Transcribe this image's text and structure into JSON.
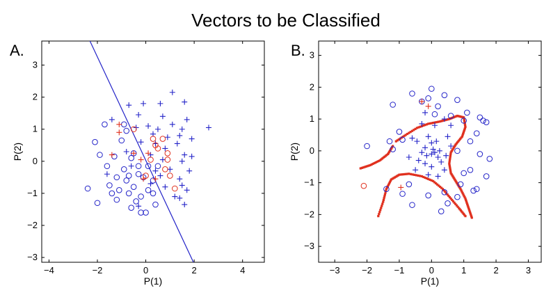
{
  "figure_title": "Vectors to be Classified",
  "colors": {
    "blue": "#2323c8",
    "red": "#e0301e",
    "axis": "#000000"
  },
  "chart_data": [
    {
      "type": "scatter",
      "panel_label": "A.",
      "xlabel": "P(1)",
      "ylabel": "P(2)",
      "xlim": [
        -4.3,
        4.9
      ],
      "ylim": [
        -3.15,
        3.75
      ],
      "xticks": [
        -4,
        -2,
        0,
        2,
        4
      ],
      "yticks": [
        -3,
        -2,
        -1,
        0,
        1,
        2,
        3
      ],
      "grid": false,
      "series": [
        {
          "marker": "plus",
          "color": "#2323c8",
          "points": [
            [
              -0.7,
              1.75
            ],
            [
              -0.1,
              1.8
            ],
            [
              0.6,
              1.8
            ],
            [
              1.1,
              2.15
            ],
            [
              1.6,
              1.85
            ],
            [
              -1.4,
              1.3
            ],
            [
              -0.3,
              1.45
            ],
            [
              0.7,
              1.4
            ],
            [
              -0.4,
              1.05
            ],
            [
              0.1,
              1.1
            ],
            [
              0.5,
              1.0
            ],
            [
              1.1,
              1.15
            ],
            [
              1.5,
              1.0
            ],
            [
              1.7,
              1.3
            ],
            [
              2.6,
              1.05
            ],
            [
              0.3,
              0.85
            ],
            [
              0.9,
              0.75
            ],
            [
              1.4,
              0.8
            ],
            [
              1.9,
              0.7
            ],
            [
              -0.2,
              0.6
            ],
            [
              0.4,
              0.55
            ],
            [
              0.8,
              0.4
            ],
            [
              1.3,
              0.55
            ],
            [
              1.6,
              0.2
            ],
            [
              -0.8,
              0.3
            ],
            [
              0.2,
              0.2
            ],
            [
              0.7,
              0.05
            ],
            [
              1.5,
              0.0
            ],
            [
              1.9,
              0.15
            ],
            [
              -0.6,
              -0.15
            ],
            [
              0.4,
              -0.3
            ],
            [
              1.0,
              -0.25
            ],
            [
              -1.6,
              -0.4
            ],
            [
              0.6,
              -0.45
            ],
            [
              1.4,
              -0.55
            ],
            [
              1.8,
              -0.3
            ],
            [
              0.2,
              -0.7
            ],
            [
              0.8,
              -0.8
            ],
            [
              1.5,
              -0.75
            ],
            [
              1.7,
              -0.9
            ],
            [
              1.2,
              -1.1
            ],
            [
              1.6,
              -1.35
            ],
            [
              1.4,
              -1.15
            ],
            [
              -0.3,
              -1.4
            ]
          ]
        },
        {
          "marker": "circle",
          "color": "#2323c8",
          "points": [
            [
              -2.4,
              -0.85
            ],
            [
              -2.0,
              -1.3
            ],
            [
              -2.1,
              0.6
            ],
            [
              -1.9,
              0.2
            ],
            [
              -1.7,
              1.15
            ],
            [
              -1.6,
              -0.15
            ],
            [
              -1.3,
              0.15
            ],
            [
              -1.2,
              -0.5
            ],
            [
              -1.1,
              -0.9
            ],
            [
              -1.2,
              -1.2
            ],
            [
              -1.0,
              0.65
            ],
            [
              -0.8,
              0.95
            ],
            [
              -0.9,
              -0.25
            ],
            [
              -0.8,
              -0.6
            ],
            [
              -0.7,
              -1.0
            ],
            [
              -0.6,
              -1.45
            ],
            [
              -0.5,
              0.25
            ],
            [
              -0.5,
              -0.8
            ],
            [
              -0.4,
              -1.25
            ],
            [
              -0.3,
              -0.4
            ],
            [
              -0.2,
              -1.1
            ],
            [
              -0.2,
              -1.6
            ],
            [
              0.0,
              -1.6
            ],
            [
              0.1,
              -0.9
            ],
            [
              0.3,
              -1.0
            ],
            [
              0.3,
              -0.6
            ],
            [
              0.4,
              -1.35
            ],
            [
              -0.6,
              0.1
            ],
            [
              -0.9,
              1.15
            ],
            [
              -1.5,
              -0.75
            ],
            [
              -0.3,
              -0.15
            ],
            [
              -0.1,
              -0.5
            ],
            [
              0.1,
              -0.15
            ],
            [
              0.5,
              -0.15
            ],
            [
              -1.4,
              -1.0
            ],
            [
              -0.7,
              -0.45
            ]
          ]
        },
        {
          "marker": "plus",
          "color": "#e0301e",
          "points": [
            [
              -1.1,
              1.15
            ],
            [
              -1.1,
              0.9
            ],
            [
              -1.4,
              0.2
            ],
            [
              -0.5,
              0.25
            ],
            [
              -0.2,
              0.05
            ],
            [
              0.1,
              0.25
            ],
            [
              0.4,
              -0.55
            ],
            [
              -0.1,
              -0.55
            ]
          ]
        },
        {
          "marker": "circle",
          "color": "#e0301e",
          "points": [
            [
              -0.5,
              1.0
            ],
            [
              0.3,
              0.7
            ],
            [
              0.4,
              0.5
            ],
            [
              0.7,
              0.7
            ],
            [
              0.5,
              0.4
            ],
            [
              0.9,
              0.25
            ],
            [
              0.2,
              0.05
            ],
            [
              0.9,
              0.05
            ],
            [
              0.8,
              -0.25
            ],
            [
              1.2,
              -0.85
            ],
            [
              0.0,
              -0.45
            ],
            [
              1.0,
              -0.45
            ]
          ]
        }
      ],
      "decision_line": {
        "color": "#2323c8",
        "from": [
          -2.4,
          3.9
        ],
        "to": [
          2.0,
          -3.2
        ]
      }
    },
    {
      "type": "scatter",
      "panel_label": "B.",
      "xlabel": "P(1)",
      "ylabel": "P(2)",
      "xlim": [
        -3.5,
        3.4
      ],
      "ylim": [
        -3.5,
        3.45
      ],
      "xticks": [
        -3,
        -2,
        -1,
        0,
        1,
        2,
        3
      ],
      "yticks": [
        -3,
        -2,
        -1,
        0,
        1,
        2,
        3
      ],
      "grid": false,
      "series": [
        {
          "marker": "plus",
          "color": "#2323c8",
          "points": [
            [
              -0.1,
              0.45
            ],
            [
              0.0,
              0.25
            ],
            [
              0.15,
              0.3
            ],
            [
              -0.2,
              0.1
            ],
            [
              0.05,
              0.05
            ],
            [
              0.25,
              0.0
            ],
            [
              -0.3,
              -0.05
            ],
            [
              0.0,
              -0.1
            ],
            [
              0.1,
              -0.05
            ],
            [
              -0.15,
              -0.15
            ],
            [
              0.2,
              -0.2
            ],
            [
              -0.4,
              -0.3
            ],
            [
              0.3,
              -0.35
            ],
            [
              -0.2,
              -0.4
            ],
            [
              0.0,
              -0.5
            ],
            [
              -0.5,
              -0.6
            ],
            [
              0.4,
              -0.6
            ],
            [
              -0.1,
              -0.75
            ],
            [
              0.2,
              -0.8
            ],
            [
              -0.6,
              0.4
            ],
            [
              0.5,
              0.45
            ],
            [
              0.6,
              0.15
            ],
            [
              -0.7,
              -0.2
            ],
            [
              0.1,
              0.8
            ],
            [
              -0.3,
              0.85
            ],
            [
              0.4,
              1.0
            ],
            [
              -0.2,
              1.2
            ],
            [
              0.6,
              0.8
            ],
            [
              -0.45,
              0.3
            ],
            [
              0.45,
              -0.15
            ]
          ]
        },
        {
          "marker": "circle",
          "color": "#2323c8",
          "points": [
            [
              -0.6,
              1.8
            ],
            [
              -0.3,
              1.55
            ],
            [
              0.0,
              1.95
            ],
            [
              0.4,
              1.75
            ],
            [
              0.8,
              1.6
            ],
            [
              0.2,
              1.4
            ],
            [
              -0.1,
              1.65
            ],
            [
              -1.2,
              1.45
            ],
            [
              0.6,
              1.1
            ],
            [
              1.1,
              1.2
            ],
            [
              1.0,
              0.95
            ],
            [
              1.5,
              1.05
            ],
            [
              1.6,
              0.95
            ],
            [
              1.7,
              0.9
            ],
            [
              1.4,
              0.55
            ],
            [
              1.2,
              0.3
            ],
            [
              0.8,
              0.0
            ],
            [
              1.5,
              -0.1
            ],
            [
              1.8,
              -0.25
            ],
            [
              1.2,
              -0.6
            ],
            [
              1.7,
              -0.8
            ],
            [
              1.4,
              -1.2
            ],
            [
              1.3,
              -1.25
            ],
            [
              0.9,
              -1.05
            ],
            [
              0.4,
              -1.3
            ],
            [
              0.5,
              -1.65
            ],
            [
              0.3,
              -1.9
            ],
            [
              -0.1,
              -1.4
            ],
            [
              -0.6,
              -1.7
            ],
            [
              -0.9,
              -1.35
            ],
            [
              -1.4,
              -1.2
            ],
            [
              -1.0,
              0.6
            ],
            [
              -0.9,
              0.35
            ],
            [
              -1.3,
              0.3
            ],
            [
              -1.2,
              0.05
            ],
            [
              -2.0,
              0.15
            ],
            [
              -0.7,
              -1.05
            ],
            [
              0.8,
              -1.45
            ],
            [
              1.0,
              -0.7
            ],
            [
              0.1,
              1.15
            ]
          ]
        },
        {
          "marker": "plus",
          "color": "#e0301e",
          "points": [
            [
              -0.3,
              1.55
            ],
            [
              -0.1,
              1.4
            ],
            [
              -0.95,
              -1.15
            ]
          ]
        },
        {
          "marker": "circle",
          "color": "#e0301e",
          "points": [
            [
              -2.1,
              -1.1
            ]
          ]
        }
      ],
      "boundary_curves": [
        {
          "color": "#e0301e",
          "points": [
            [
              -2.2,
              -0.55
            ],
            [
              -1.9,
              -0.45
            ],
            [
              -1.6,
              -0.3
            ],
            [
              -1.35,
              -0.1
            ],
            [
              -1.2,
              0.15
            ]
          ]
        },
        {
          "color": "#e0301e",
          "points": [
            [
              -1.1,
              0.3
            ],
            [
              -0.8,
              0.5
            ],
            [
              -0.45,
              0.72
            ],
            [
              -0.1,
              0.85
            ],
            [
              0.25,
              0.92
            ],
            [
              0.55,
              1.0
            ],
            [
              0.8,
              1.1
            ],
            [
              1.0,
              1.05
            ],
            [
              1.05,
              0.75
            ],
            [
              0.95,
              0.45
            ],
            [
              0.75,
              0.2
            ],
            [
              0.6,
              -0.05
            ],
            [
              0.55,
              -0.4
            ],
            [
              0.6,
              -0.7
            ],
            [
              0.75,
              -0.95
            ],
            [
              0.9,
              -1.2
            ],
            [
              1.05,
              -1.5
            ],
            [
              1.15,
              -1.8
            ],
            [
              1.25,
              -2.1
            ]
          ]
        },
        {
          "color": "#e0301e",
          "points": [
            [
              -1.65,
              -2.05
            ],
            [
              -1.5,
              -1.6
            ],
            [
              -1.4,
              -1.2
            ],
            [
              -1.25,
              -0.9
            ],
            [
              -1.0,
              -0.75
            ],
            [
              -0.7,
              -0.72
            ],
            [
              -0.3,
              -0.8
            ],
            [
              0.05,
              -0.95
            ],
            [
              0.35,
              -1.2
            ],
            [
              0.6,
              -1.5
            ],
            [
              0.85,
              -1.8
            ],
            [
              1.05,
              -2.05
            ]
          ]
        }
      ]
    }
  ]
}
